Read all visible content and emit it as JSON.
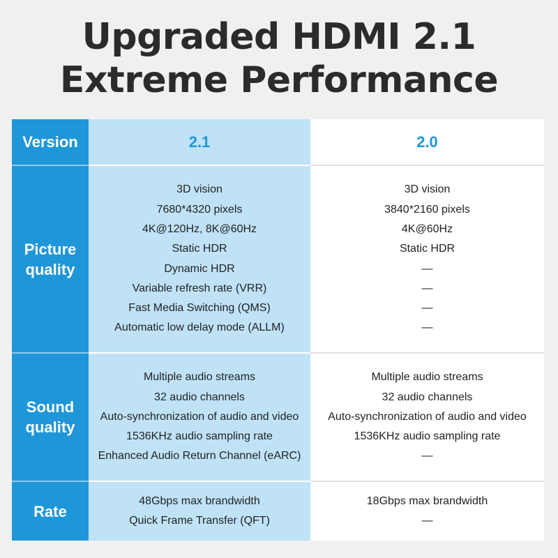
{
  "title": {
    "line1": "Upgraded HDMI 2.1",
    "line2": "Extreme Performance"
  },
  "header": {
    "label": "Version",
    "col1": "2.1",
    "col2": "2.0"
  },
  "rows": [
    {
      "label_line1": "Picture",
      "label_line2": "quality",
      "col1": [
        "3D vision",
        "7680*4320 pixels",
        "4K@120Hz, 8K@60Hz",
        "Static HDR",
        "Dynamic HDR",
        "Variable refresh rate (VRR)",
        "Fast Media Switching (QMS)",
        "Automatic low delay mode (ALLM)"
      ],
      "col2": [
        "3D vision",
        "3840*2160 pixels",
        "4K@60Hz",
        "Static HDR",
        "—",
        "—",
        "—",
        "—"
      ]
    },
    {
      "label_line1": "Sound",
      "label_line2": "quality",
      "col1": [
        "Multiple audio streams",
        "32 audio channels",
        "Auto-synchronization of audio and video",
        "1536KHz audio sampling rate",
        "Enhanced Audio Return Channel (eARC)"
      ],
      "col2": [
        "Multiple audio streams",
        "32 audio channels",
        "Auto-synchronization of audio and video",
        "1536KHz audio sampling rate",
        "—"
      ]
    },
    {
      "label_line1": "Rate",
      "label_line2": "",
      "col1": [
        "48Gbps max brandwidth",
        "Quick Frame Transfer (QFT)"
      ],
      "col2": [
        "18Gbps  max brandwidth",
        "—"
      ]
    }
  ],
  "colors": {
    "accent": "#1e96d8",
    "col21_bg": "#bfe2f7",
    "col20_bg": "#ffffff",
    "page_bg": "#f0f0f0"
  }
}
